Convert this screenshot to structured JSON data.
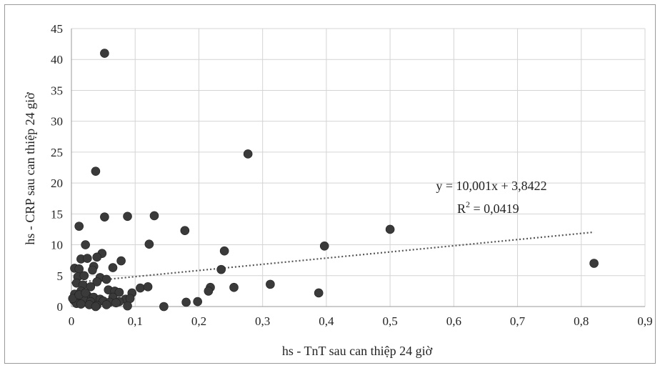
{
  "chart_data": {
    "type": "scatter",
    "xlabel": "hs - TnT sau can thiệp 24 giờ",
    "ylabel": "hs - CRP sau can thiệp 24 giờ",
    "xlim": [
      0,
      0.9
    ],
    "ylim": [
      0,
      45
    ],
    "xticks": [
      0,
      0.1,
      0.2,
      0.3,
      0.4,
      0.5,
      0.6,
      0.7,
      0.8,
      0.9
    ],
    "xtick_labels": [
      "0",
      "0,1",
      "0,2",
      "0,3",
      "0,4",
      "0,5",
      "0,6",
      "0,7",
      "0,8",
      "0,9"
    ],
    "yticks": [
      0,
      5,
      10,
      15,
      20,
      25,
      30,
      35,
      40,
      45
    ],
    "ytick_labels": [
      "0",
      "5",
      "10",
      "15",
      "20",
      "25",
      "30",
      "35",
      "40",
      "45"
    ],
    "grid": true,
    "marker_color": "#3a3a3a",
    "trendline": {
      "slope": 10.001,
      "intercept": 3.8422,
      "x_range": [
        0,
        0.82
      ],
      "style": "dotted",
      "color": "#555555",
      "equation": "y = 10,001x + 3,8422",
      "r2_prefix": "R",
      "r2_sup": "2",
      "r2_value": " = 0,0419"
    },
    "points": [
      [
        0.052,
        41.0
      ],
      [
        0.277,
        24.7
      ],
      [
        0.038,
        21.9
      ],
      [
        0.012,
        13.0
      ],
      [
        0.052,
        14.5
      ],
      [
        0.088,
        14.6
      ],
      [
        0.13,
        14.7
      ],
      [
        0.178,
        12.3
      ],
      [
        0.5,
        12.5
      ],
      [
        0.022,
        10.0
      ],
      [
        0.122,
        10.1
      ],
      [
        0.397,
        9.8
      ],
      [
        0.24,
        9.0
      ],
      [
        0.048,
        8.6
      ],
      [
        0.015,
        7.7
      ],
      [
        0.025,
        7.8
      ],
      [
        0.04,
        8.0
      ],
      [
        0.078,
        7.4
      ],
      [
        0.82,
        7.0
      ],
      [
        0.005,
        6.2
      ],
      [
        0.012,
        6.1
      ],
      [
        0.035,
        6.5
      ],
      [
        0.065,
        6.3
      ],
      [
        0.033,
        5.9
      ],
      [
        0.235,
        6.0
      ],
      [
        0.01,
        4.8
      ],
      [
        0.02,
        5.0
      ],
      [
        0.045,
        4.7
      ],
      [
        0.055,
        4.4
      ],
      [
        0.04,
        4.0
      ],
      [
        0.008,
        3.8
      ],
      [
        0.018,
        3.5
      ],
      [
        0.03,
        3.2
      ],
      [
        0.058,
        2.7
      ],
      [
        0.015,
        2.5
      ],
      [
        0.068,
        2.5
      ],
      [
        0.075,
        2.3
      ],
      [
        0.095,
        2.2
      ],
      [
        0.312,
        3.6
      ],
      [
        0.218,
        3.1
      ],
      [
        0.255,
        3.1
      ],
      [
        0.108,
        3.0
      ],
      [
        0.12,
        3.2
      ],
      [
        0.388,
        2.2
      ],
      [
        0.215,
        2.5
      ],
      [
        0.005,
        2.0
      ],
      [
        0.01,
        1.6
      ],
      [
        0.025,
        1.8
      ],
      [
        0.035,
        1.5
      ],
      [
        0.045,
        1.2
      ],
      [
        0.065,
        1.5
      ],
      [
        0.085,
        1.2
      ],
      [
        0.092,
        1.3
      ],
      [
        0.004,
        1.0
      ],
      [
        0.02,
        1.0
      ],
      [
        0.03,
        0.8
      ],
      [
        0.05,
        0.9
      ],
      [
        0.06,
        0.7
      ],
      [
        0.075,
        0.8
      ],
      [
        0.008,
        0.5
      ],
      [
        0.015,
        0.4
      ],
      [
        0.028,
        0.3
      ],
      [
        0.04,
        0.2
      ],
      [
        0.055,
        0.3
      ],
      [
        0.07,
        0.6
      ],
      [
        0.18,
        0.7
      ],
      [
        0.198,
        0.8
      ],
      [
        0.088,
        0.1
      ],
      [
        0.145,
        0.0
      ],
      [
        0.038,
        0.0
      ],
      [
        0.002,
        1.3
      ],
      [
        0.012,
        1.9
      ],
      [
        0.022,
        2.2
      ]
    ]
  }
}
